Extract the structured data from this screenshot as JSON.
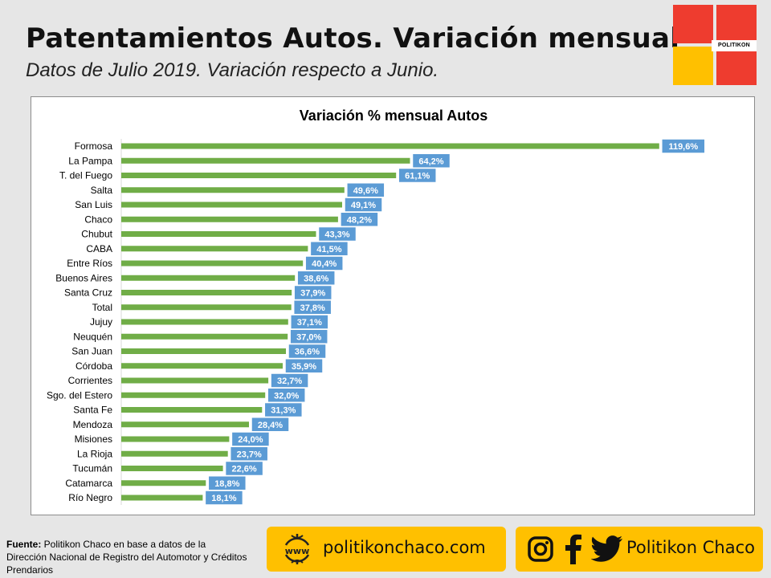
{
  "header": {
    "title": "Patentamientos Autos. Variación mensual",
    "subtitle": "Datos de Julio 2019. Variación respecto a Junio."
  },
  "logo": {
    "text": "POLITIKON"
  },
  "colors": {
    "bar": "#70ad47",
    "label_bg": "#5b9bd5",
    "label_text": "#ffffff",
    "accent_yellow": "#ffc000",
    "accent_red": "#ee3c2f"
  },
  "chart_data": {
    "type": "bar",
    "orientation": "horizontal",
    "title": "Variación % mensual Autos",
    "categories": [
      "Formosa",
      "La Pampa",
      "T. del Fuego",
      "Salta",
      "San Luis",
      "Chaco",
      "Chubut",
      "CABA",
      "Entre Ríos",
      "Buenos Aires",
      "Santa Cruz",
      "Total",
      "Jujuy",
      "Neuquén",
      "San Juan",
      "Córdoba",
      "Corrientes",
      "Sgo. del Estero",
      "Santa Fe",
      "Mendoza",
      "Misiones",
      "La Rioja",
      "Tucumán",
      "Catamarca",
      "Río Negro"
    ],
    "values": [
      119.6,
      64.2,
      61.1,
      49.6,
      49.1,
      48.2,
      43.3,
      41.5,
      40.4,
      38.6,
      37.9,
      37.8,
      37.1,
      37.0,
      36.6,
      35.9,
      32.7,
      32.0,
      31.3,
      28.4,
      24.0,
      23.7,
      22.6,
      18.8,
      18.1
    ],
    "data_labels": [
      "119,6%",
      "64,2%",
      "61,1%",
      "49,6%",
      "49,1%",
      "48,2%",
      "43,3%",
      "41,5%",
      "40,4%",
      "38,6%",
      "37,9%",
      "37,8%",
      "37,1%",
      "37,0%",
      "36,6%",
      "35,9%",
      "32,7%",
      "32,0%",
      "31,3%",
      "28,4%",
      "24,0%",
      "23,7%",
      "22,6%",
      "18,8%",
      "18,1%"
    ],
    "xlim": [
      0,
      120
    ],
    "grid": false,
    "legend": "none"
  },
  "footer": {
    "source_label": "Fuente:",
    "source_text": " Politikon Chaco en base a datos de la Dirección Nacional de Registro del Automotor y Créditos Prendarios",
    "web_icon_text": "www",
    "website": "politikonchaco.com",
    "social_name": "Politikon Chaco",
    "icons": [
      "globe-icon",
      "instagram-icon",
      "facebook-icon",
      "twitter-icon"
    ]
  }
}
